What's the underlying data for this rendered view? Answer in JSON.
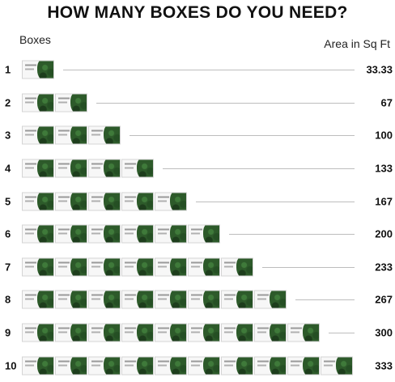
{
  "title": "HOW MANY BOXES DO YOU NEED?",
  "header": {
    "left_label": "Boxes",
    "right_label": "Area in Sq Ft"
  },
  "box_icon": "boxwood-hedge-panel-box",
  "rows": [
    {
      "count": "1",
      "boxes": 1,
      "area": "33.33"
    },
    {
      "count": "2",
      "boxes": 2,
      "area": "67"
    },
    {
      "count": "3",
      "boxes": 3,
      "area": "100"
    },
    {
      "count": "4",
      "boxes": 4,
      "area": "133"
    },
    {
      "count": "5",
      "boxes": 5,
      "area": "167"
    },
    {
      "count": "6",
      "boxes": 6,
      "area": "200"
    },
    {
      "count": "7",
      "boxes": 7,
      "area": "233"
    },
    {
      "count": "8",
      "boxes": 8,
      "area": "267"
    },
    {
      "count": "9",
      "boxes": 9,
      "area": "300"
    },
    {
      "count": "10",
      "boxes": 10,
      "area": "333"
    }
  ],
  "colors": {
    "text": "#111111",
    "line": "#bdbdbd",
    "foliage": "#2d5a2a"
  }
}
